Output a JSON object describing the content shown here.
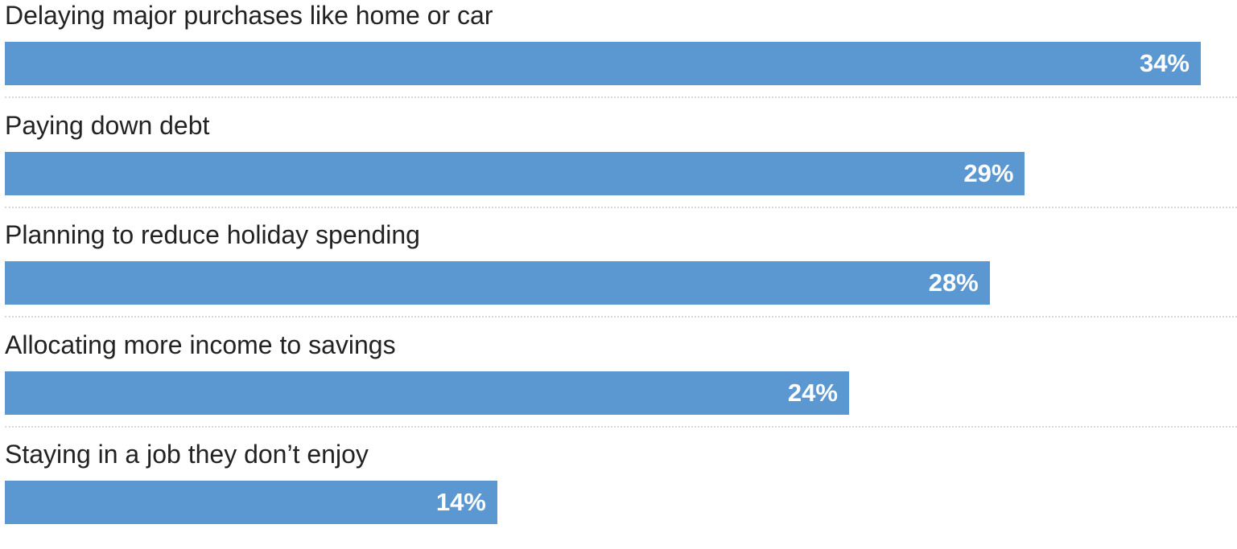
{
  "chart_data": {
    "type": "bar",
    "orientation": "horizontal",
    "categories": [
      "Delaying major purchases like home or car",
      "Paying down debt",
      "Planning to reduce holiday spending",
      "Allocating more income to savings",
      "Staying in a job they don’t enjoy"
    ],
    "values": [
      34,
      29,
      28,
      24,
      14
    ],
    "value_labels": [
      "34%",
      "29%",
      "28%",
      "24%",
      "14%"
    ],
    "unit": "%",
    "xlim": [
      0,
      34
    ],
    "title": "",
    "xlabel": "",
    "ylabel": "",
    "grid": false,
    "legend": "none",
    "colors": {
      "bar": "#5b97d1",
      "label_text": "#222222",
      "value_text": "#ffffff",
      "divider": "#d9d9d9"
    }
  }
}
